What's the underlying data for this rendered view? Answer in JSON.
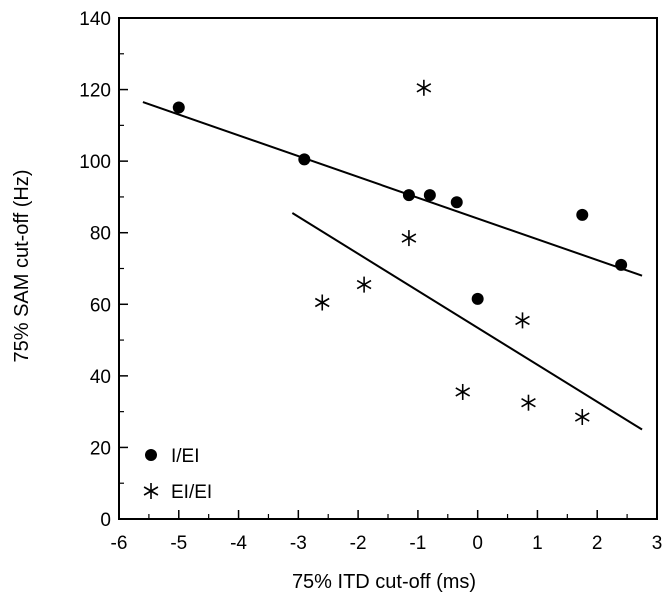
{
  "chart_data": {
    "type": "scatter",
    "title": "",
    "xlabel": "75% ITD cut-off (ms)",
    "ylabel": "75% SAM cut-off (Hz)",
    "xlim": [
      -6,
      3
    ],
    "ylim": [
      0,
      140
    ],
    "xticks": [
      -6,
      -5,
      -4,
      -3,
      -2,
      -1,
      0,
      1,
      2,
      3
    ],
    "yticks": [
      0,
      20,
      40,
      60,
      80,
      100,
      120,
      140
    ],
    "grid": false,
    "legend_position": "bottom-left",
    "series": [
      {
        "name": "I/EI",
        "marker": "filled-circle",
        "points": [
          {
            "x": -5.0,
            "y": 115
          },
          {
            "x": -2.9,
            "y": 100.5
          },
          {
            "x": -1.15,
            "y": 90.5
          },
          {
            "x": -0.8,
            "y": 90.5
          },
          {
            "x": -0.35,
            "y": 88.5
          },
          {
            "x": 0.0,
            "y": 61.5
          },
          {
            "x": 1.75,
            "y": 85
          },
          {
            "x": 2.4,
            "y": 71
          }
        ],
        "fit_line": {
          "x": [
            -5.6,
            2.75
          ],
          "y": [
            116.5,
            68
          ]
        }
      },
      {
        "name": "EI/EI",
        "marker": "asterisk",
        "points": [
          {
            "x": -0.9,
            "y": 120.5
          },
          {
            "x": -1.15,
            "y": 78.5
          },
          {
            "x": -1.9,
            "y": 65.5
          },
          {
            "x": -2.6,
            "y": 60.5
          },
          {
            "x": 0.75,
            "y": 55.5
          },
          {
            "x": -0.25,
            "y": 35.5
          },
          {
            "x": 0.85,
            "y": 32.5
          },
          {
            "x": 1.75,
            "y": 28.5
          }
        ],
        "fit_line": {
          "x": [
            -3.1,
            2.75
          ],
          "y": [
            85.5,
            25
          ]
        }
      }
    ]
  }
}
